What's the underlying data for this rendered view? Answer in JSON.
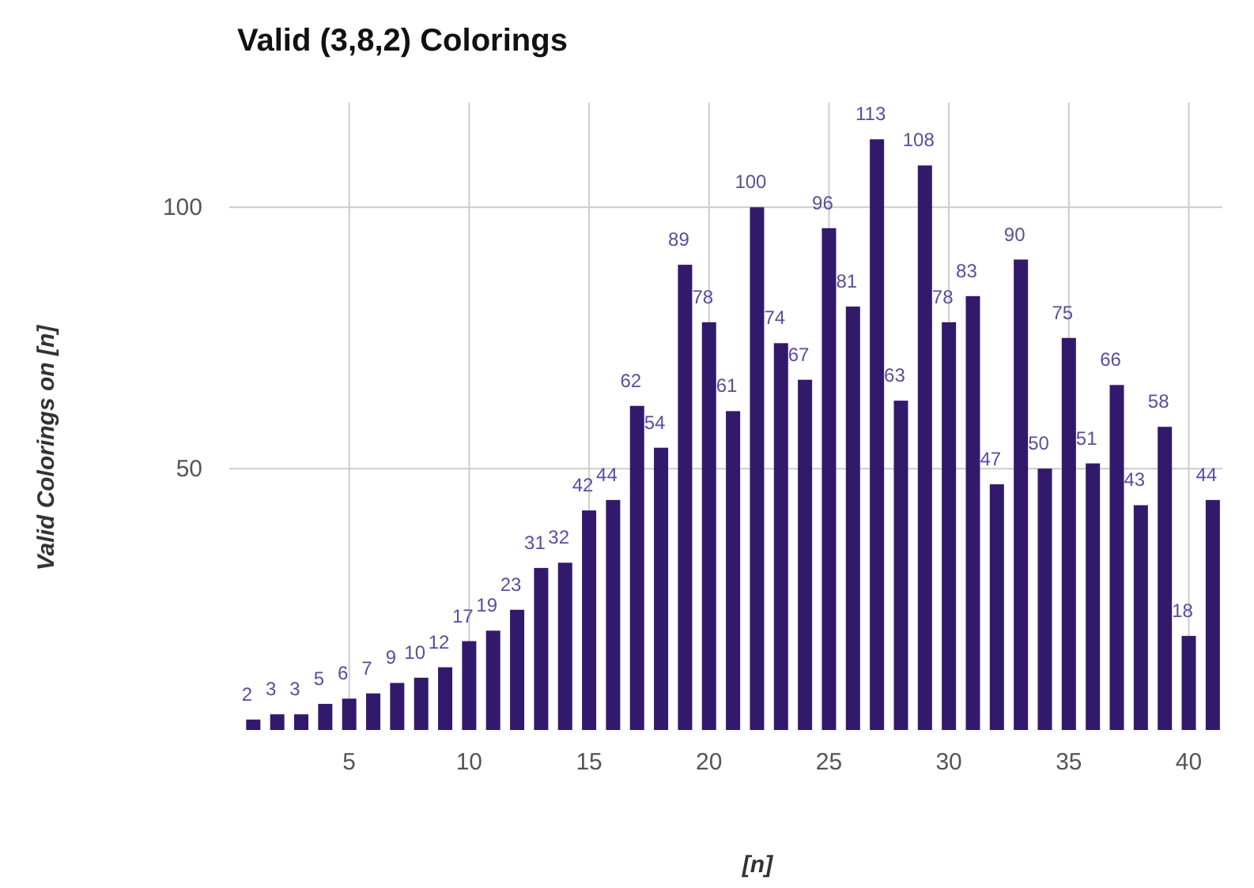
{
  "chart_data": {
    "type": "bar",
    "title": "Valid (3,8,2) Colorings",
    "xlabel": "[n]",
    "ylabel": "Valid Colorings on [n]",
    "x": [
      1,
      2,
      3,
      4,
      5,
      6,
      7,
      8,
      9,
      10,
      11,
      12,
      13,
      14,
      15,
      16,
      17,
      18,
      19,
      20,
      21,
      22,
      23,
      24,
      25,
      26,
      27,
      28,
      29,
      30,
      31,
      32,
      33,
      34,
      35,
      36,
      37,
      38,
      39,
      40,
      41
    ],
    "values": [
      2,
      3,
      3,
      5,
      6,
      7,
      9,
      10,
      12,
      17,
      19,
      23,
      31,
      32,
      42,
      44,
      62,
      54,
      89,
      78,
      61,
      100,
      74,
      67,
      96,
      81,
      113,
      63,
      108,
      78,
      83,
      47,
      90,
      50,
      75,
      51,
      66,
      43,
      58,
      18,
      44
    ],
    "color": "#33196b",
    "data_labels": true,
    "xlim": [
      0,
      41.4
    ],
    "xticks": [
      5,
      10,
      15,
      20,
      25,
      30,
      35,
      40
    ],
    "ylim": [
      0,
      120
    ],
    "yticks": [
      50,
      100
    ],
    "grid": true
  }
}
